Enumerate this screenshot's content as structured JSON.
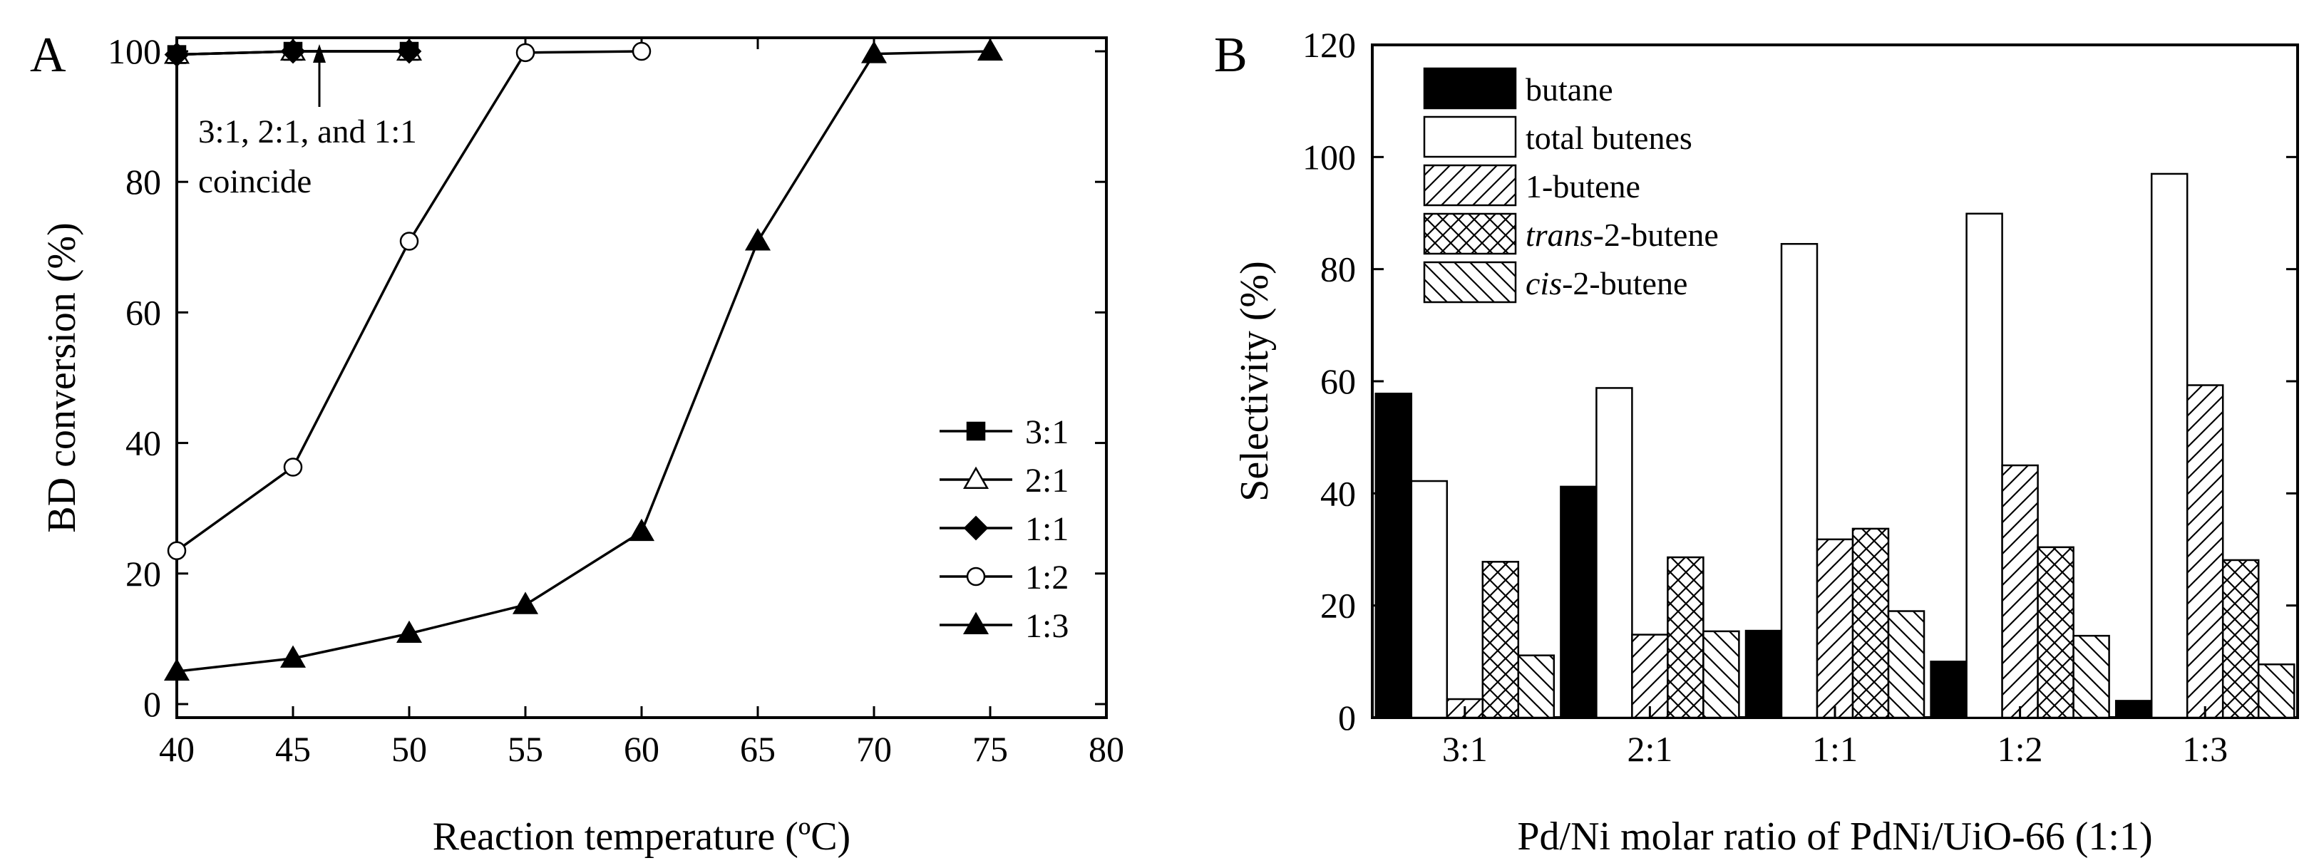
{
  "chart_data": [
    {
      "type": "line",
      "panel_label": "A",
      "xlabel": "Reaction temperature (ºC)",
      "ylabel": "BD conversion (%)",
      "xlim": [
        40,
        80
      ],
      "ylim": [
        0,
        100
      ],
      "xticks": [
        "40",
        "45",
        "50",
        "55",
        "60",
        "65",
        "70",
        "75",
        "80"
      ],
      "yticks": [
        "0",
        "20",
        "40",
        "60",
        "80",
        "100"
      ],
      "legend_position": "lower-right",
      "annotation": {
        "line1": "3:1, 2:1, and 1:1",
        "line2": "coincide",
        "points_to": [
          45,
          100
        ]
      },
      "series": [
        {
          "name": "3:1",
          "marker": "square",
          "filled": true,
          "x": [
            40,
            45,
            50
          ],
          "y": [
            99.5,
            100,
            100
          ]
        },
        {
          "name": "2:1",
          "marker": "triangle",
          "filled": false,
          "x": [
            40,
            45,
            50
          ],
          "y": [
            99.5,
            100,
            100
          ]
        },
        {
          "name": "1:1",
          "marker": "diamond",
          "filled": true,
          "x": [
            40,
            45,
            50
          ],
          "y": [
            99.5,
            100,
            100
          ]
        },
        {
          "name": "1:2",
          "marker": "circle",
          "filled": false,
          "x": [
            40,
            45,
            50,
            55,
            60
          ],
          "y": [
            23.5,
            36.3,
            70.9,
            99.8,
            100
          ]
        },
        {
          "name": "1:3",
          "marker": "triangle",
          "filled": true,
          "x": [
            40,
            45,
            50,
            55,
            60,
            65,
            70,
            75
          ],
          "y": [
            5.0,
            7.0,
            10.8,
            15.2,
            26.4,
            70.9,
            99.6,
            100
          ]
        }
      ]
    },
    {
      "type": "bar",
      "panel_label": "B",
      "xlabel": "Pd/Ni molar ratio of PdNi/UiO-66 (1:1)",
      "ylabel": "Selectivity (%)",
      "ylim": [
        0,
        120
      ],
      "yticks": [
        "0",
        "20",
        "40",
        "60",
        "80",
        "100",
        "120"
      ],
      "legend_position": "top-left",
      "categories": [
        "3:1",
        "2:1",
        "1:1",
        "1:2",
        "1:3"
      ],
      "series": [
        {
          "name": "butane",
          "pattern": "solid-black",
          "values": [
            57.8,
            41.2,
            15.5,
            10.0,
            3.0
          ]
        },
        {
          "name": "total butenes",
          "pattern": "white",
          "values": [
            42.2,
            58.8,
            84.5,
            89.9,
            97.0
          ]
        },
        {
          "name": "1-butene",
          "pattern": "diagonal-forward",
          "values": [
            3.3,
            14.8,
            31.8,
            45.0,
            59.3
          ]
        },
        {
          "name_italic": "trans",
          "name_rest": "-2-butene",
          "pattern": "crosshatch",
          "values": [
            27.8,
            28.6,
            33.7,
            30.4,
            28.1
          ]
        },
        {
          "name_italic": "cis",
          "name_rest": "-2-butene",
          "pattern": "diagonal-back",
          "values": [
            11.1,
            15.4,
            19.0,
            14.6,
            9.5
          ]
        }
      ]
    }
  ]
}
